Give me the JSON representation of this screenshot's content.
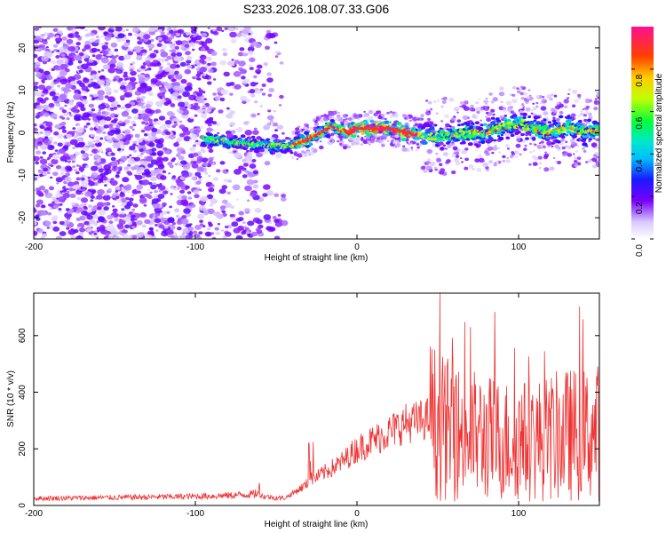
{
  "chart_data": [
    {
      "type": "heatmap",
      "title": "S233.2026.108.07.33.G06",
      "xlabel": "Height of straight line (km)",
      "ylabel": "Frequency (Hz)",
      "xlim": [
        -200,
        150
      ],
      "ylim": [
        -25,
        25
      ],
      "xticks": [
        -200,
        -100,
        0,
        100
      ],
      "yticks": [
        -20,
        -10,
        0,
        10,
        20
      ],
      "colorbar": {
        "label": "Normalized spectral amplitude",
        "range": [
          0,
          1
        ],
        "ticks": [
          0.0,
          0.2,
          0.4,
          0.6,
          0.8
        ]
      },
      "ridge_frequency": {
        "x": [
          -90,
          -70,
          -50,
          -40,
          -30,
          -20,
          -15,
          -5,
          0,
          10,
          20,
          30,
          40,
          50,
          60,
          70,
          80,
          90,
          100,
          110,
          120,
          130,
          140,
          150
        ],
        "freq_hz": [
          -1.5,
          -2.5,
          -3,
          -3,
          -1.5,
          0.5,
          1.5,
          0,
          1,
          1,
          1,
          0,
          -0.5,
          -1,
          -0.5,
          0,
          0,
          1.5,
          2,
          1,
          0,
          1.5,
          0,
          0.5
        ]
      }
    },
    {
      "type": "line",
      "title": "",
      "xlabel": "Height of straight line (km)",
      "ylabel": "SNR (10 * v/v)",
      "xlim": [
        -200,
        150
      ],
      "ylim": [
        0,
        750
      ],
      "xticks": [
        -200,
        -100,
        0,
        100
      ],
      "yticks": [
        0,
        200,
        400,
        600
      ],
      "series": [
        {
          "name": "SNR",
          "color": "#ee3333",
          "x": [
            -200,
            -150,
            -100,
            -80,
            -65,
            -55,
            -45,
            -35,
            -25,
            -10,
            0,
            10,
            20,
            30,
            40,
            45,
            50,
            60,
            70,
            80,
            90,
            100,
            110,
            120,
            130,
            140,
            150
          ],
          "y": [
            25,
            28,
            32,
            35,
            40,
            30,
            25,
            60,
            100,
            150,
            200,
            230,
            260,
            290,
            300,
            310,
            280,
            260,
            250,
            240,
            230,
            230,
            230,
            240,
            250,
            250,
            260
          ]
        }
      ]
    }
  ]
}
